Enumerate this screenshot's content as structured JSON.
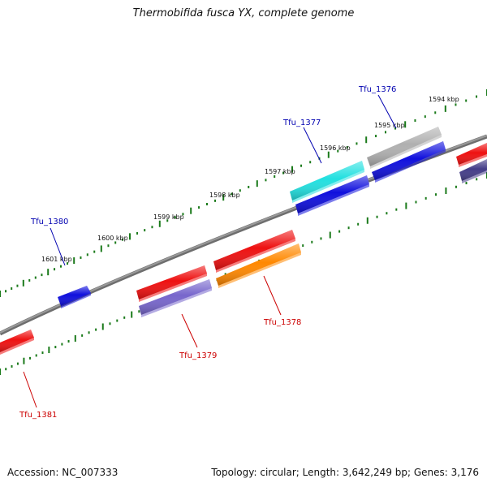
{
  "title": "Thermobifida fusca YX, complete genome",
  "footer": {
    "accession": "Accession: NC_007333",
    "summary": "Topology: circular; Length: 3,642,249 bp; Genes: 3,176"
  },
  "colors": {
    "backbone": "#808080",
    "tick": "#1a7a1a",
    "label_forward": "#0000b0",
    "label_reverse": "#cc0000",
    "red": "#ee1111",
    "blue": "#1010dd",
    "cyan": "#22e0e0",
    "gray": "#b0b0b0",
    "purple": "#7766cc",
    "orange": "#ff8800",
    "navy": "#443d88"
  },
  "ticks": [
    {
      "label": "1594 kbp",
      "kbp": 1594
    },
    {
      "label": "1595 kbp",
      "kbp": 1595
    },
    {
      "label": "1596 kbp",
      "kbp": 1596
    },
    {
      "label": "1597 kbp",
      "kbp": 1597
    },
    {
      "label": "1598 kbp",
      "kbp": 1598
    },
    {
      "label": "1599 kbp",
      "kbp": 1599
    },
    {
      "label": "1600 kbp",
      "kbp": 1600
    },
    {
      "label": "1601 kbp",
      "kbp": 1601
    }
  ],
  "genes": [
    {
      "name": "Tfu_1376",
      "strand": "+",
      "color": "gray"
    },
    {
      "name": "Tfu_1377",
      "strand": "+",
      "color": "cyan"
    },
    {
      "name": "Tfu_1378",
      "strand": "-",
      "color": "orange"
    },
    {
      "name": "Tfu_1379",
      "strand": "-",
      "color": "purple"
    },
    {
      "name": "Tfu_1380",
      "strand": "+",
      "color": "blue"
    },
    {
      "name": "Tfu_1381",
      "strand": "-",
      "color": "red"
    }
  ]
}
